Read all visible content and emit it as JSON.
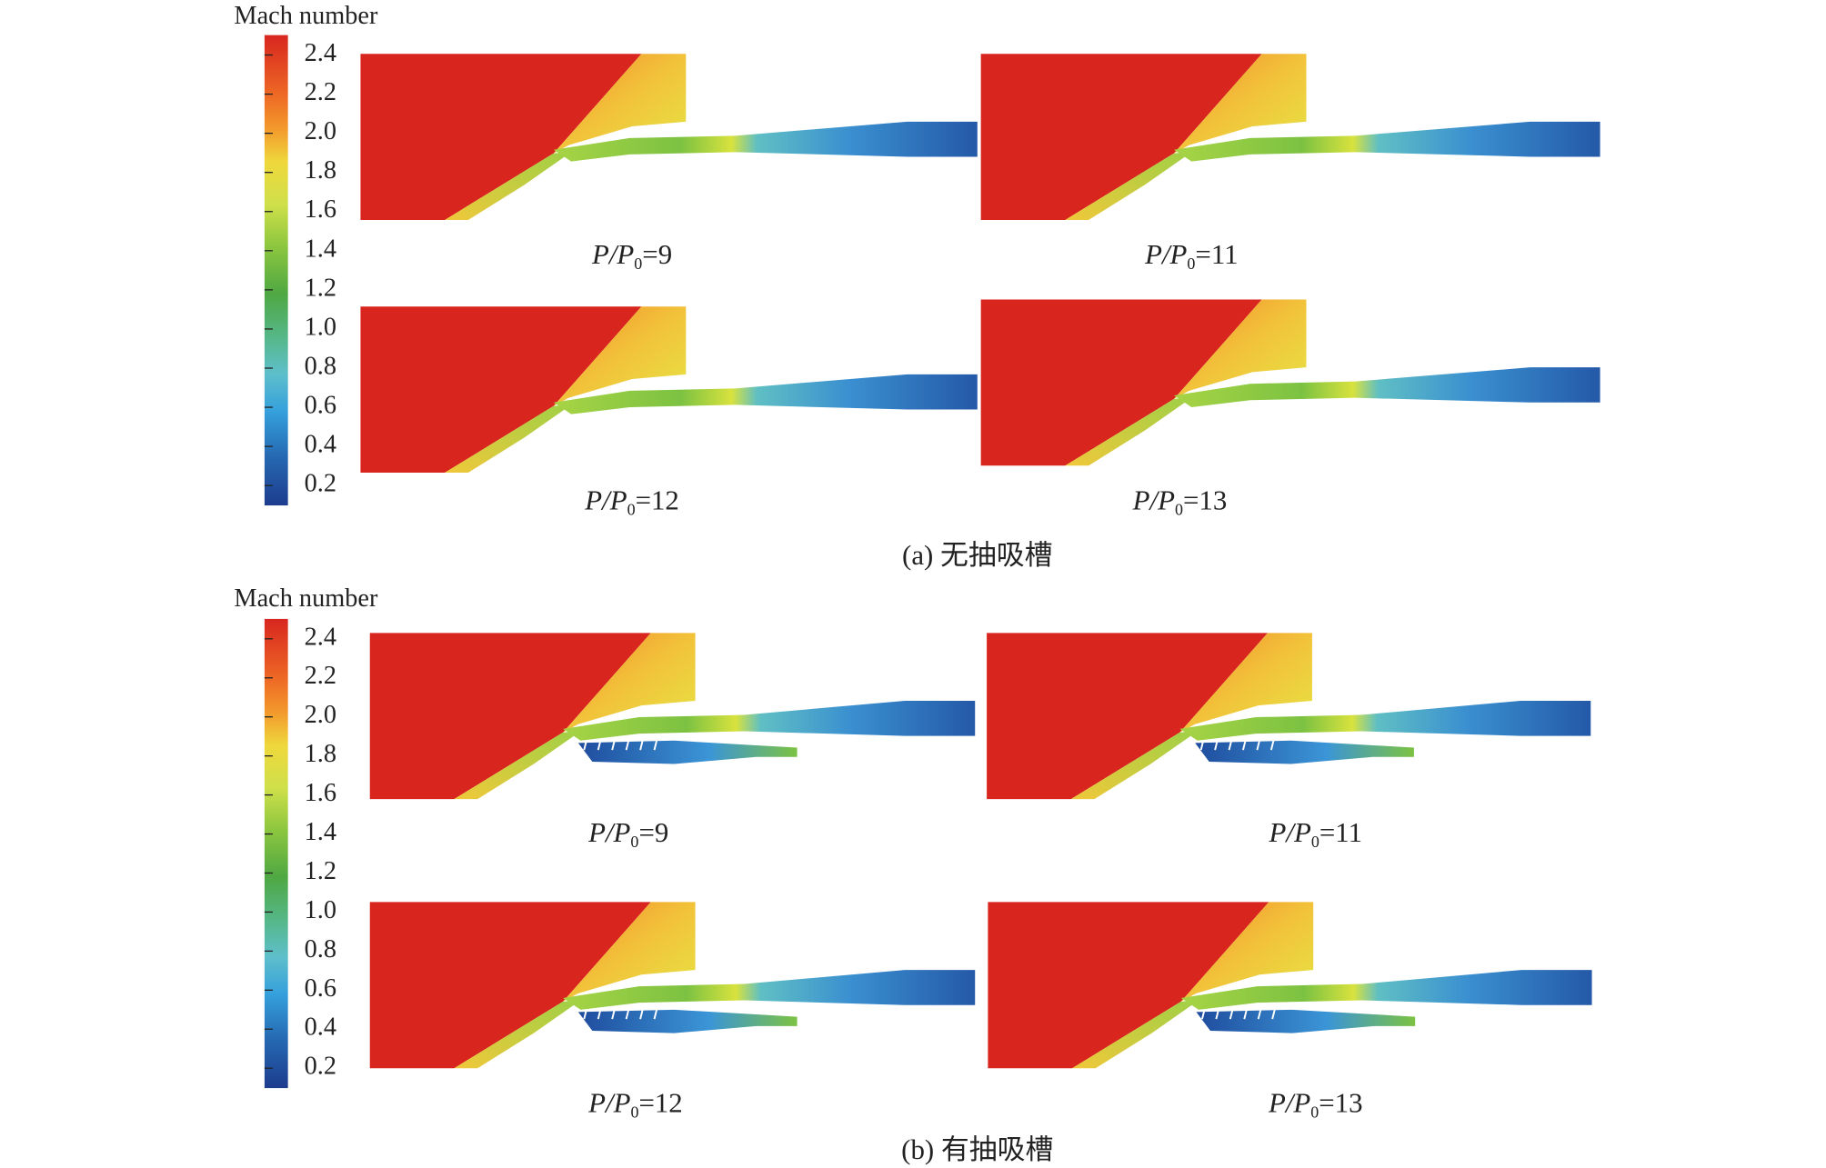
{
  "label_prefix": "P/P",
  "label_subscript": "0",
  "panels": [
    {
      "colorbar": {
        "title": "Mach number",
        "ticks": [
          "2.4",
          "2.2",
          "2.0",
          "1.8",
          "1.6",
          "1.4",
          "1.2",
          "1.0",
          "0.8",
          "0.6",
          "0.4",
          "0.2"
        ]
      },
      "subplots": [
        {
          "label_suffix": "=9"
        },
        {
          "label_suffix": "=11"
        },
        {
          "label_suffix": "=12"
        },
        {
          "label_suffix": "=13"
        }
      ],
      "caption": "(a) 无抽吸槽"
    },
    {
      "colorbar": {
        "title": "Mach number",
        "ticks": [
          "2.4",
          "2.2",
          "2.0",
          "1.8",
          "1.6",
          "1.4",
          "1.2",
          "1.0",
          "0.8",
          "0.6",
          "0.4",
          "0.2"
        ]
      },
      "subplots": [
        {
          "label_suffix": "=9"
        },
        {
          "label_suffix": "=11"
        },
        {
          "label_suffix": "=12"
        },
        {
          "label_suffix": "=13"
        }
      ],
      "caption": "(b) 有抽吸槽"
    }
  ]
}
